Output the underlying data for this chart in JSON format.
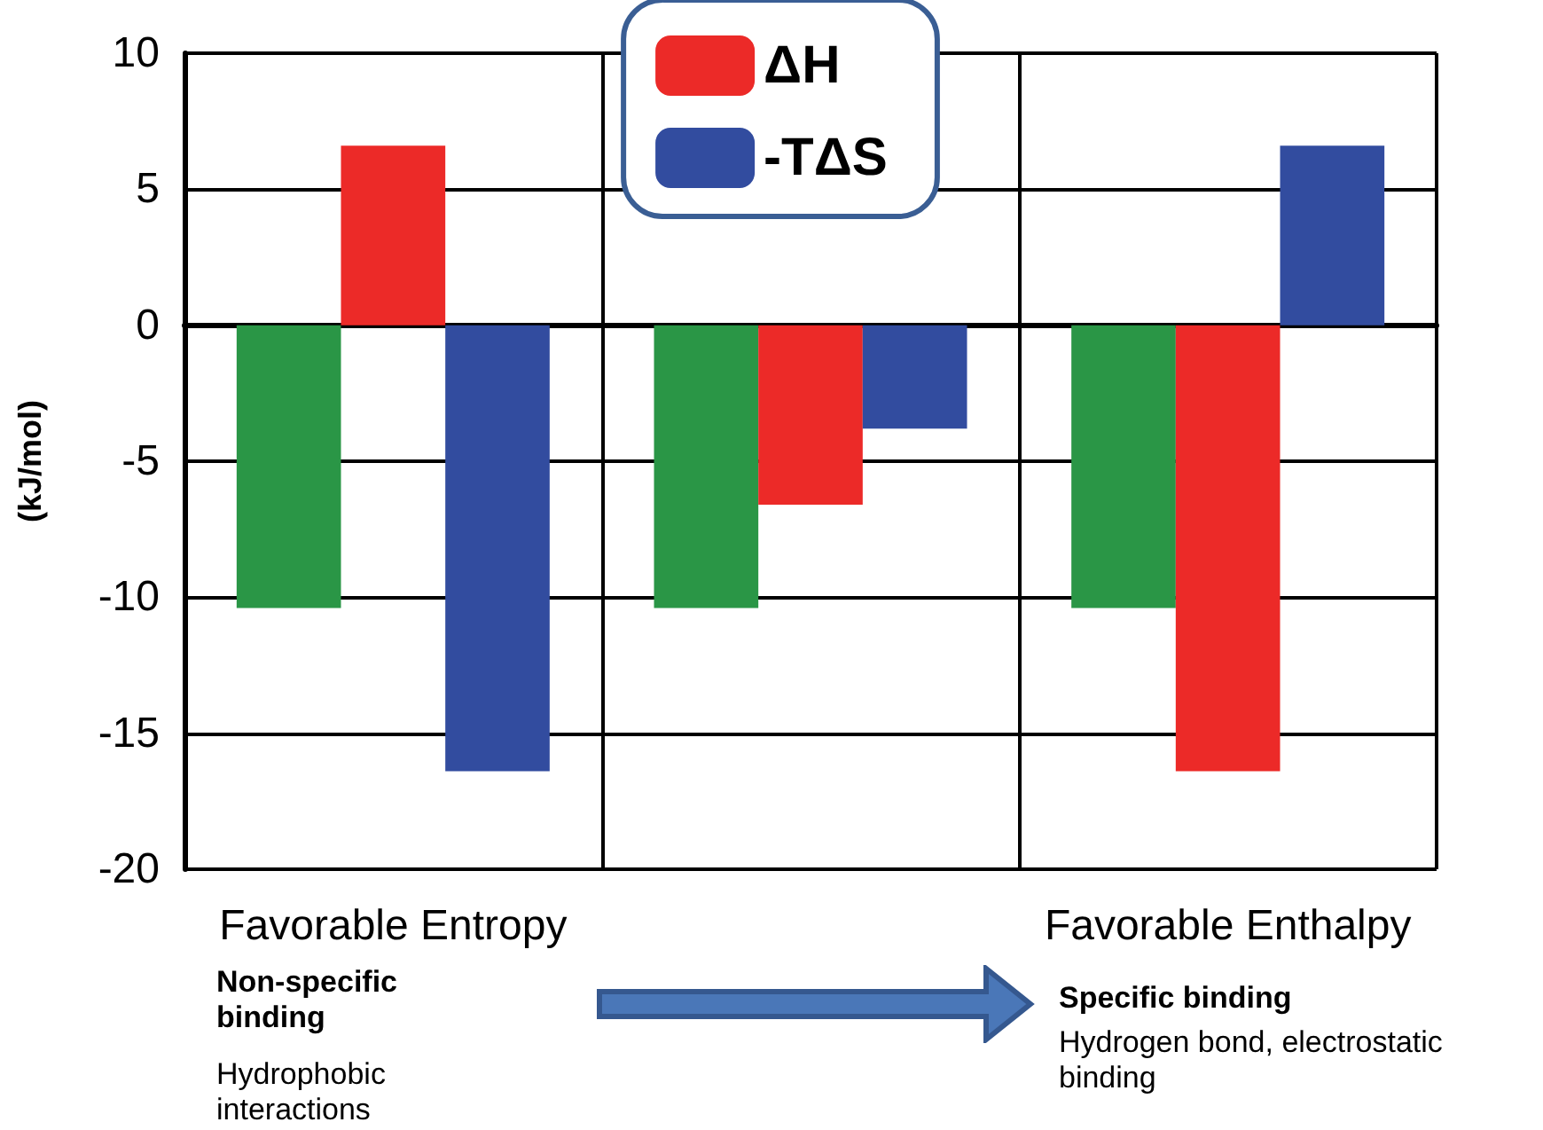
{
  "chart_data": {
    "type": "bar",
    "ylabel": "(kJ/mol)",
    "categories": [
      "Favorable Entropy",
      null,
      "Favorable Enthalpy"
    ],
    "series": [
      {
        "color": "#2a9646",
        "values": [
          -10.4,
          -10.4,
          -10.4
        ]
      },
      {
        "name": "ΔH",
        "color": "#ec2a28",
        "values": [
          6.6,
          -6.6,
          -16.4
        ]
      },
      {
        "name": "-TΔS",
        "color": "#324c9f",
        "values": [
          -16.4,
          -3.8,
          6.6
        ]
      }
    ],
    "ylim": [
      -20,
      10
    ],
    "yticks": [
      -20,
      -15,
      -10,
      -5,
      0,
      5,
      10
    ],
    "grid": true,
    "legend": "top",
    "annotations": [
      "Non-specific binding",
      "Hydrophobic interactions",
      "Specific binding",
      "Hydrogen bond, electrostatic binding"
    ]
  }
}
